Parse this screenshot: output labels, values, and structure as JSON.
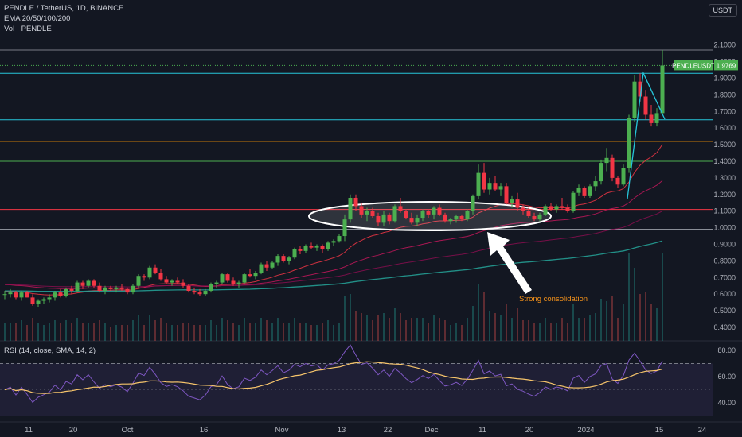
{
  "legend": {
    "symbol": "PENDLE / TetherUS, 1D, BINANCE",
    "ema": "EMA 20/50/100/200",
    "vol": "Vol · PENDLE"
  },
  "currency_button": "USDT",
  "price_tag": {
    "label": "PENDLEUSDT",
    "value": "1.9769"
  },
  "rsi_legend": "RSI (14, close, SMA, 14, 2)",
  "annotation": "Strong consolidation",
  "colors": {
    "background": "#131722",
    "up": "#26a69a",
    "down": "#ef5350",
    "up_candle": "#4caf50",
    "down_candle": "#f23645",
    "ema20": "#f23645",
    "ema50": "#c2185b",
    "ema100": "#880e4f",
    "ema200": "#26a69a",
    "rsi_line": "#7e57c2",
    "rsi_ma": "#f7c56b",
    "annotation": "#f7931a"
  },
  "chart_data": {
    "type": "candlestick",
    "price_axis": {
      "ticks": [
        "2.1000",
        "2.0000",
        "1.9000",
        "1.8000",
        "1.7000",
        "1.6000",
        "1.5000",
        "1.4000",
        "1.3000",
        "1.2000",
        "1.1000",
        "1.0000",
        "0.9000",
        "0.8000",
        "0.7000",
        "0.6000",
        "0.5000",
        "0.4000"
      ],
      "scale": "linear"
    },
    "time_axis": {
      "ticks": [
        "11",
        "20",
        "Oct",
        "16",
        "Nov",
        "13",
        "22",
        "Dec",
        "11",
        "20",
        "2024",
        "15",
        "24"
      ]
    },
    "horizontal_levels": [
      {
        "price": 2.07,
        "color": "#787b86"
      },
      {
        "price": 1.93,
        "color": "#26c6da"
      },
      {
        "price": 1.65,
        "color": "#26c6da"
      },
      {
        "price": 1.52,
        "color": "#ff9800"
      },
      {
        "price": 1.4,
        "color": "#4caf50"
      },
      {
        "price": 1.11,
        "color": "#f23645"
      },
      {
        "price": 0.99,
        "color": "#b2b5be"
      }
    ],
    "last_price": 1.9769,
    "candles": [
      [
        0.6,
        0.62,
        0.57,
        0.6
      ],
      [
        0.6,
        0.63,
        0.58,
        0.61
      ],
      [
        0.61,
        0.62,
        0.57,
        0.58
      ],
      [
        0.58,
        0.62,
        0.56,
        0.61
      ],
      [
        0.61,
        0.62,
        0.58,
        0.58
      ],
      [
        0.58,
        0.6,
        0.53,
        0.54
      ],
      [
        0.54,
        0.57,
        0.52,
        0.56
      ],
      [
        0.56,
        0.58,
        0.54,
        0.57
      ],
      [
        0.57,
        0.6,
        0.55,
        0.58
      ],
      [
        0.58,
        0.62,
        0.56,
        0.61
      ],
      [
        0.61,
        0.63,
        0.58,
        0.59
      ],
      [
        0.59,
        0.64,
        0.58,
        0.63
      ],
      [
        0.63,
        0.65,
        0.6,
        0.62
      ],
      [
        0.62,
        0.68,
        0.61,
        0.67
      ],
      [
        0.67,
        0.68,
        0.63,
        0.65
      ],
      [
        0.65,
        0.69,
        0.64,
        0.68
      ],
      [
        0.68,
        0.69,
        0.64,
        0.65
      ],
      [
        0.65,
        0.67,
        0.61,
        0.62
      ],
      [
        0.62,
        0.65,
        0.6,
        0.64
      ],
      [
        0.64,
        0.65,
        0.62,
        0.63
      ],
      [
        0.63,
        0.65,
        0.61,
        0.64
      ],
      [
        0.64,
        0.66,
        0.62,
        0.63
      ],
      [
        0.63,
        0.64,
        0.6,
        0.61
      ],
      [
        0.61,
        0.66,
        0.6,
        0.65
      ],
      [
        0.65,
        0.72,
        0.64,
        0.71
      ],
      [
        0.71,
        0.72,
        0.68,
        0.7
      ],
      [
        0.7,
        0.77,
        0.69,
        0.76
      ],
      [
        0.76,
        0.78,
        0.72,
        0.73
      ],
      [
        0.73,
        0.75,
        0.68,
        0.69
      ],
      [
        0.69,
        0.71,
        0.66,
        0.67
      ],
      [
        0.67,
        0.69,
        0.65,
        0.68
      ],
      [
        0.68,
        0.7,
        0.66,
        0.67
      ],
      [
        0.67,
        0.69,
        0.64,
        0.65
      ],
      [
        0.65,
        0.66,
        0.61,
        0.62
      ],
      [
        0.62,
        0.64,
        0.6,
        0.61
      ],
      [
        0.61,
        0.63,
        0.59,
        0.6
      ],
      [
        0.6,
        0.63,
        0.59,
        0.62
      ],
      [
        0.62,
        0.67,
        0.61,
        0.66
      ],
      [
        0.66,
        0.68,
        0.64,
        0.67
      ],
      [
        0.67,
        0.73,
        0.66,
        0.72
      ],
      [
        0.72,
        0.73,
        0.67,
        0.68
      ],
      [
        0.68,
        0.7,
        0.65,
        0.66
      ],
      [
        0.66,
        0.68,
        0.64,
        0.67
      ],
      [
        0.67,
        0.73,
        0.66,
        0.72
      ],
      [
        0.72,
        0.75,
        0.7,
        0.71
      ],
      [
        0.71,
        0.74,
        0.69,
        0.73
      ],
      [
        0.73,
        0.79,
        0.72,
        0.78
      ],
      [
        0.78,
        0.8,
        0.74,
        0.76
      ],
      [
        0.76,
        0.8,
        0.75,
        0.79
      ],
      [
        0.79,
        0.84,
        0.77,
        0.83
      ],
      [
        0.83,
        0.84,
        0.79,
        0.8
      ],
      [
        0.8,
        0.83,
        0.78,
        0.82
      ],
      [
        0.82,
        0.88,
        0.81,
        0.87
      ],
      [
        0.87,
        0.89,
        0.84,
        0.86
      ],
      [
        0.86,
        0.9,
        0.85,
        0.89
      ],
      [
        0.89,
        0.91,
        0.87,
        0.88
      ],
      [
        0.88,
        0.9,
        0.86,
        0.89
      ],
      [
        0.89,
        0.9,
        0.85,
        0.87
      ],
      [
        0.87,
        0.92,
        0.86,
        0.91
      ],
      [
        0.91,
        0.93,
        0.89,
        0.92
      ],
      [
        0.92,
        0.96,
        0.91,
        0.95
      ],
      [
        0.95,
        1.08,
        0.92,
        1.05
      ],
      [
        1.05,
        1.2,
        1.03,
        1.18
      ],
      [
        1.18,
        1.2,
        1.1,
        1.13
      ],
      [
        1.13,
        1.15,
        1.06,
        1.08
      ],
      [
        1.08,
        1.12,
        1.04,
        1.1
      ],
      [
        1.1,
        1.12,
        1.06,
        1.07
      ],
      [
        1.07,
        1.09,
        1.01,
        1.03
      ],
      [
        1.03,
        1.1,
        1.01,
        1.08
      ],
      [
        1.08,
        1.09,
        1.02,
        1.04
      ],
      [
        1.04,
        1.14,
        1.03,
        1.13
      ],
      [
        1.13,
        1.18,
        1.09,
        1.1
      ],
      [
        1.1,
        1.11,
        1.05,
        1.06
      ],
      [
        1.06,
        1.09,
        1.02,
        1.03
      ],
      [
        1.03,
        1.08,
        1.01,
        1.06
      ],
      [
        1.06,
        1.11,
        1.04,
        1.1
      ],
      [
        1.1,
        1.11,
        1.06,
        1.08
      ],
      [
        1.08,
        1.13,
        1.05,
        1.12
      ],
      [
        1.12,
        1.14,
        1.07,
        1.08
      ],
      [
        1.08,
        1.09,
        1.03,
        1.04
      ],
      [
        1.04,
        1.06,
        1.02,
        1.05
      ],
      [
        1.05,
        1.08,
        1.03,
        1.07
      ],
      [
        1.07,
        1.08,
        1.04,
        1.05
      ],
      [
        1.05,
        1.11,
        1.04,
        1.1
      ],
      [
        1.1,
        1.2,
        1.08,
        1.19
      ],
      [
        1.19,
        1.38,
        1.17,
        1.33
      ],
      [
        1.33,
        1.39,
        1.21,
        1.23
      ],
      [
        1.23,
        1.3,
        1.2,
        1.27
      ],
      [
        1.27,
        1.31,
        1.22,
        1.23
      ],
      [
        1.23,
        1.27,
        1.19,
        1.25
      ],
      [
        1.25,
        1.27,
        1.14,
        1.15
      ],
      [
        1.15,
        1.19,
        1.12,
        1.17
      ],
      [
        1.17,
        1.21,
        1.1,
        1.12
      ],
      [
        1.12,
        1.14,
        1.08,
        1.1
      ],
      [
        1.1,
        1.12,
        1.06,
        1.07
      ],
      [
        1.07,
        1.09,
        1.04,
        1.05
      ],
      [
        1.05,
        1.09,
        1.04,
        1.08
      ],
      [
        1.08,
        1.14,
        1.07,
        1.13
      ],
      [
        1.13,
        1.15,
        1.1,
        1.11
      ],
      [
        1.11,
        1.14,
        1.09,
        1.13
      ],
      [
        1.13,
        1.18,
        1.11,
        1.12
      ],
      [
        1.12,
        1.14,
        1.09,
        1.1
      ],
      [
        1.1,
        1.22,
        1.09,
        1.21
      ],
      [
        1.21,
        1.26,
        1.19,
        1.24
      ],
      [
        1.24,
        1.25,
        1.18,
        1.19
      ],
      [
        1.19,
        1.26,
        1.18,
        1.25
      ],
      [
        1.25,
        1.31,
        1.22,
        1.28
      ],
      [
        1.28,
        1.41,
        1.26,
        1.39
      ],
      [
        1.39,
        1.48,
        1.34,
        1.42
      ],
      [
        1.42,
        1.44,
        1.28,
        1.3
      ],
      [
        1.3,
        1.31,
        1.24,
        1.26
      ],
      [
        1.26,
        1.38,
        1.25,
        1.36
      ],
      [
        1.36,
        1.68,
        1.33,
        1.66
      ],
      [
        1.66,
        1.92,
        1.64,
        1.88
      ],
      [
        1.88,
        1.93,
        1.76,
        1.79
      ],
      [
        1.79,
        1.83,
        1.65,
        1.68
      ],
      [
        1.68,
        1.74,
        1.61,
        1.63
      ],
      [
        1.63,
        1.72,
        1.61,
        1.69
      ],
      [
        1.69,
        2.07,
        1.68,
        1.9769
      ]
    ],
    "ema": [
      {
        "name": "EMA 20"
      },
      {
        "name": "EMA 50"
      },
      {
        "name": "EMA 100"
      },
      {
        "name": "EMA 200"
      }
    ],
    "rsi": {
      "ticks": [
        "80.00",
        "60.00",
        "40.00"
      ],
      "upper": 70,
      "lower": 30,
      "last": 72
    }
  }
}
